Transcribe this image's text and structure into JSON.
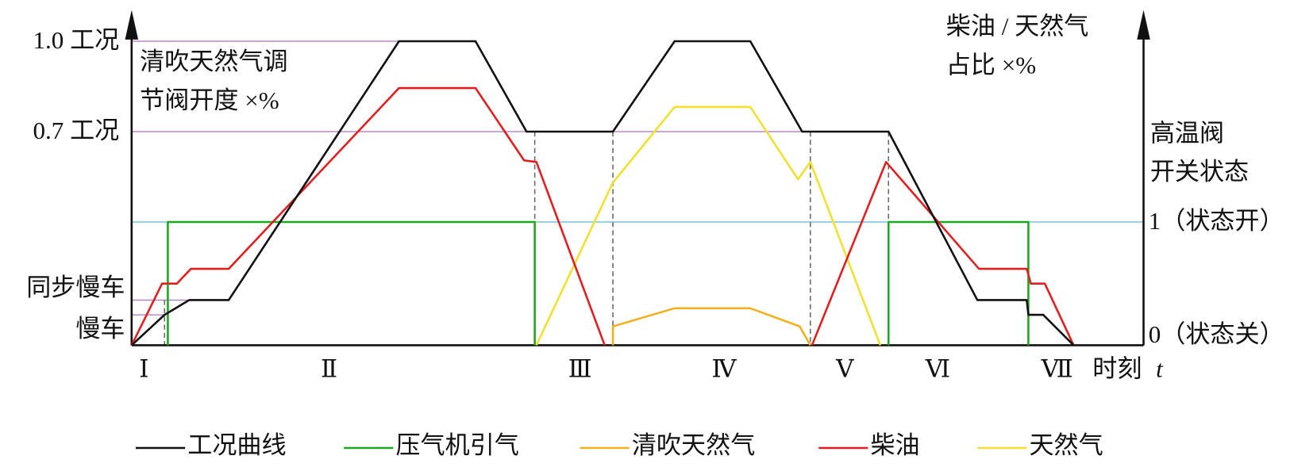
{
  "left_levels": [
    "1.0 工况",
    "0.7 工况",
    "同步慢车",
    "慢车"
  ],
  "left_title": [
    "清吹天然气调",
    "节阀开度 ×%"
  ],
  "right_title": [
    "柴油 / 天然气",
    "占比 ×%"
  ],
  "valve_title": [
    "高温阀",
    "开关状态"
  ],
  "valve_states": [
    "1（状态开）",
    "0（状态关）"
  ],
  "stages": [
    "Ⅰ",
    "Ⅱ",
    "Ⅲ",
    "Ⅳ",
    "Ⅴ",
    "Ⅵ",
    "Ⅶ"
  ],
  "time_label": "时刻",
  "time_symbol": "t",
  "legend": [
    "工况曲线",
    "压气机引气",
    "清吹天然气",
    "柴油",
    "天然气"
  ]
}
